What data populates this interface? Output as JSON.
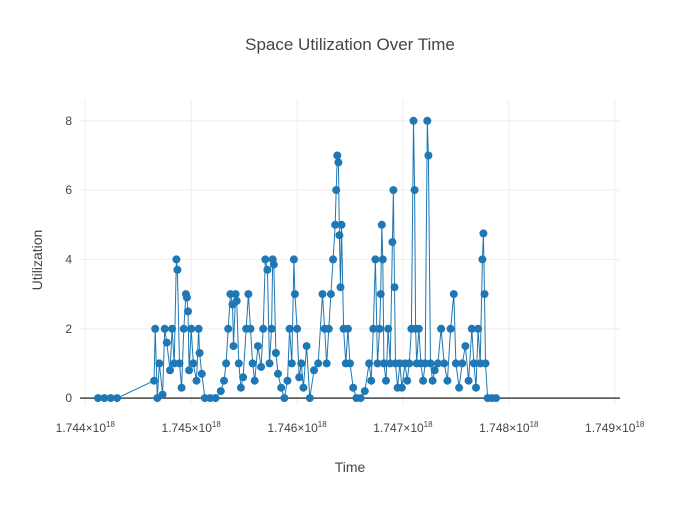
{
  "chart_data": {
    "type": "line",
    "title": "Space Utilization Over Time",
    "xlabel": "Time",
    "ylabel": "Utilization",
    "x_unit": "ns since epoch",
    "xlim": [
      1.74395e+18,
      1.74905e+18
    ],
    "ylim": [
      -0.2,
      8.6
    ],
    "grid": true,
    "x_ticks": [
      {
        "value": 1.744e+18,
        "mantissa": "1.744",
        "exp": "18"
      },
      {
        "value": 1.745e+18,
        "mantissa": "1.745",
        "exp": "18"
      },
      {
        "value": 1.746e+18,
        "mantissa": "1.746",
        "exp": "18"
      },
      {
        "value": 1.747e+18,
        "mantissa": "1.747",
        "exp": "18"
      },
      {
        "value": 1.748e+18,
        "mantissa": "1.748",
        "exp": "18"
      },
      {
        "value": 1.749e+18,
        "mantissa": "1.749",
        "exp": "18"
      }
    ],
    "y_ticks": [
      {
        "value": 0,
        "label": "0"
      },
      {
        "value": 2,
        "label": "2"
      },
      {
        "value": 4,
        "label": "4"
      },
      {
        "value": 6,
        "label": "6"
      },
      {
        "value": 8,
        "label": "8"
      }
    ],
    "series": [
      {
        "color": "#1f77b4",
        "points": [
          [
            1.74412e+18,
            0
          ],
          [
            1.74418e+18,
            0
          ],
          [
            1.74424e+18,
            0
          ],
          [
            1.7443e+18,
            0
          ],
          [
            1.74465e+18,
            0.5
          ],
          [
            1.74466e+18,
            2.0
          ],
          [
            1.74468e+18,
            0
          ],
          [
            1.7447e+18,
            1.0
          ],
          [
            1.74473e+18,
            0.1
          ],
          [
            1.74475e+18,
            2.0
          ],
          [
            1.74477e+18,
            1.6
          ],
          [
            1.7448e+18,
            0.8
          ],
          [
            1.74482e+18,
            2.0
          ],
          [
            1.74484e+18,
            1.0
          ],
          [
            1.74486e+18,
            4.0
          ],
          [
            1.74487e+18,
            3.7
          ],
          [
            1.74489e+18,
            1.0
          ],
          [
            1.74491e+18,
            0.3
          ],
          [
            1.74493e+18,
            2.0
          ],
          [
            1.74495e+18,
            3.0
          ],
          [
            1.74496e+18,
            2.9
          ],
          [
            1.74497e+18,
            2.5
          ],
          [
            1.74498e+18,
            0.8
          ],
          [
            1.745e+18,
            2.0
          ],
          [
            1.74502e+18,
            1.0
          ],
          [
            1.74505e+18,
            0.5
          ],
          [
            1.74507e+18,
            2.0
          ],
          [
            1.74508e+18,
            1.3
          ],
          [
            1.7451e+18,
            0.7
          ],
          [
            1.74513e+18,
            0
          ],
          [
            1.74518e+18,
            0
          ],
          [
            1.74523e+18,
            0
          ],
          [
            1.74528e+18,
            0.2
          ],
          [
            1.74531e+18,
            0.5
          ],
          [
            1.74533e+18,
            1.0
          ],
          [
            1.74535e+18,
            2.0
          ],
          [
            1.74537e+18,
            3.0
          ],
          [
            1.74539e+18,
            2.7
          ],
          [
            1.7454e+18,
            1.5
          ],
          [
            1.74542e+18,
            3.0
          ],
          [
            1.74543e+18,
            2.8
          ],
          [
            1.74545e+18,
            1.0
          ],
          [
            1.74547e+18,
            0.3
          ],
          [
            1.74549e+18,
            0.6
          ],
          [
            1.74552e+18,
            2.0
          ],
          [
            1.74554e+18,
            3.0
          ],
          [
            1.74556e+18,
            2.0
          ],
          [
            1.74558e+18,
            1.0
          ],
          [
            1.7456e+18,
            0.5
          ],
          [
            1.74563e+18,
            1.5
          ],
          [
            1.74566e+18,
            0.9
          ],
          [
            1.74568e+18,
            2.0
          ],
          [
            1.7457e+18,
            4.0
          ],
          [
            1.74572e+18,
            3.7
          ],
          [
            1.74574e+18,
            1.0
          ],
          [
            1.74576e+18,
            2.0
          ],
          [
            1.74577e+18,
            4.0
          ],
          [
            1.74578e+18,
            3.85
          ],
          [
            1.7458e+18,
            1.3
          ],
          [
            1.74582e+18,
            0.7
          ],
          [
            1.74585e+18,
            0.3
          ],
          [
            1.74588e+18,
            0
          ],
          [
            1.74591e+18,
            0.5
          ],
          [
            1.74593e+18,
            2.0
          ],
          [
            1.74595e+18,
            1.0
          ],
          [
            1.74597e+18,
            4.0
          ],
          [
            1.74598e+18,
            3.0
          ],
          [
            1.746e+18,
            2.0
          ],
          [
            1.74602e+18,
            0.6
          ],
          [
            1.74604e+18,
            1.0
          ],
          [
            1.74606e+18,
            0.3
          ],
          [
            1.74609e+18,
            1.5
          ],
          [
            1.74612e+18,
            0
          ],
          [
            1.74616e+18,
            0.8
          ],
          [
            1.7462e+18,
            1.0
          ],
          [
            1.74624e+18,
            3.0
          ],
          [
            1.74626e+18,
            2.0
          ],
          [
            1.74628e+18,
            1.0
          ],
          [
            1.7463e+18,
            2.0
          ],
          [
            1.74632e+18,
            3.0
          ],
          [
            1.74634e+18,
            4.0
          ],
          [
            1.74636e+18,
            5.0
          ],
          [
            1.74637e+18,
            6.0
          ],
          [
            1.74638e+18,
            7.0
          ],
          [
            1.74639e+18,
            6.8
          ],
          [
            1.7464e+18,
            4.7
          ],
          [
            1.74641e+18,
            3.2
          ],
          [
            1.74642e+18,
            5.0
          ],
          [
            1.74644e+18,
            2.0
          ],
          [
            1.74646e+18,
            1.0
          ],
          [
            1.74648e+18,
            2.0
          ],
          [
            1.7465e+18,
            1.0
          ],
          [
            1.74653e+18,
            0.3
          ],
          [
            1.74656e+18,
            0
          ],
          [
            1.7466e+18,
            0
          ],
          [
            1.74664e+18,
            0.2
          ],
          [
            1.74668e+18,
            1.0
          ],
          [
            1.7467e+18,
            0.5
          ],
          [
            1.74672e+18,
            2.0
          ],
          [
            1.74674e+18,
            4.0
          ],
          [
            1.74676e+18,
            1.0
          ],
          [
            1.74678e+18,
            2.0
          ],
          [
            1.74679e+18,
            3.0
          ],
          [
            1.7468e+18,
            5.0
          ],
          [
            1.74681e+18,
            4.0
          ],
          [
            1.74682e+18,
            1.0
          ],
          [
            1.74684e+18,
            0.5
          ],
          [
            1.74686e+18,
            2.0
          ],
          [
            1.74688e+18,
            1.0
          ],
          [
            1.7469e+18,
            4.5
          ],
          [
            1.74691e+18,
            6.0
          ],
          [
            1.74692e+18,
            3.2
          ],
          [
            1.74693e+18,
            1.0
          ],
          [
            1.74695e+18,
            0.3
          ],
          [
            1.74697e+18,
            1.0
          ],
          [
            1.74699e+18,
            0.3
          ],
          [
            1.74702e+18,
            1.0
          ],
          [
            1.74704e+18,
            0.5
          ],
          [
            1.74706e+18,
            1.0
          ],
          [
            1.74708e+18,
            2.0
          ],
          [
            1.7471e+18,
            8.0
          ],
          [
            1.74711e+18,
            6.0
          ],
          [
            1.74712e+18,
            2.0
          ],
          [
            1.74713e+18,
            1.0
          ],
          [
            1.74715e+18,
            2.0
          ],
          [
            1.74717e+18,
            1.0
          ],
          [
            1.74719e+18,
            0.5
          ],
          [
            1.74721e+18,
            1.0
          ],
          [
            1.74723e+18,
            8.0
          ],
          [
            1.74724e+18,
            7.0
          ],
          [
            1.74726e+18,
            1.0
          ],
          [
            1.74728e+18,
            0.5
          ],
          [
            1.7473e+18,
            0.8
          ],
          [
            1.74733e+18,
            1.0
          ],
          [
            1.74736e+18,
            2.0
          ],
          [
            1.74739e+18,
            1.0
          ],
          [
            1.74742e+18,
            0.5
          ],
          [
            1.74745e+18,
            2.0
          ],
          [
            1.74748e+18,
            3.0
          ],
          [
            1.7475e+18,
            1.0
          ],
          [
            1.74753e+18,
            0.3
          ],
          [
            1.74756e+18,
            1.0
          ],
          [
            1.74759e+18,
            1.5
          ],
          [
            1.74762e+18,
            0.5
          ],
          [
            1.74765e+18,
            2.0
          ],
          [
            1.74767e+18,
            1.0
          ],
          [
            1.74769e+18,
            0.3
          ],
          [
            1.74771e+18,
            2.0
          ],
          [
            1.74773e+18,
            1.0
          ],
          [
            1.74775e+18,
            4.0
          ],
          [
            1.74776e+18,
            4.75
          ],
          [
            1.74777e+18,
            3.0
          ],
          [
            1.74778e+18,
            1.0
          ],
          [
            1.7478e+18,
            0
          ],
          [
            1.74784e+18,
            0
          ],
          [
            1.74788e+18,
            0
          ]
        ]
      }
    ]
  }
}
